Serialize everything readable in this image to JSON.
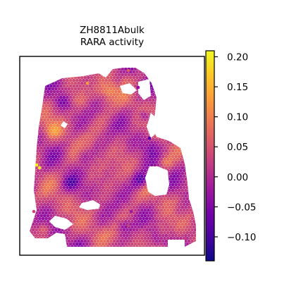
{
  "chart_data": {
    "type": "scatter",
    "title_lines": [
      "ZH8811Abulk",
      "RARA activity"
    ],
    "xlabel": "",
    "ylabel": "",
    "axes_ticks_visible": false,
    "grid": false,
    "colorbar": {
      "colormap": "plasma",
      "range": [
        -0.14,
        0.21
      ],
      "ticks": [
        0.2,
        0.15,
        0.1,
        0.05,
        0.0,
        -0.05,
        -0.1
      ],
      "tick_labels": [
        "0.20",
        "0.15",
        "0.10",
        "0.05",
        "0.00",
        "−0.05",
        "−0.10"
      ],
      "placement": "right"
    },
    "plasma_stops": [
      "#0d0887",
      "#46039f",
      "#7201a8",
      "#9c179e",
      "#bd3786",
      "#d8576b",
      "#ed7953",
      "#fb9f3a",
      "#fdca26",
      "#f0f921"
    ],
    "colors": {
      "background": "#ffffff",
      "frame": "#000000"
    }
  }
}
